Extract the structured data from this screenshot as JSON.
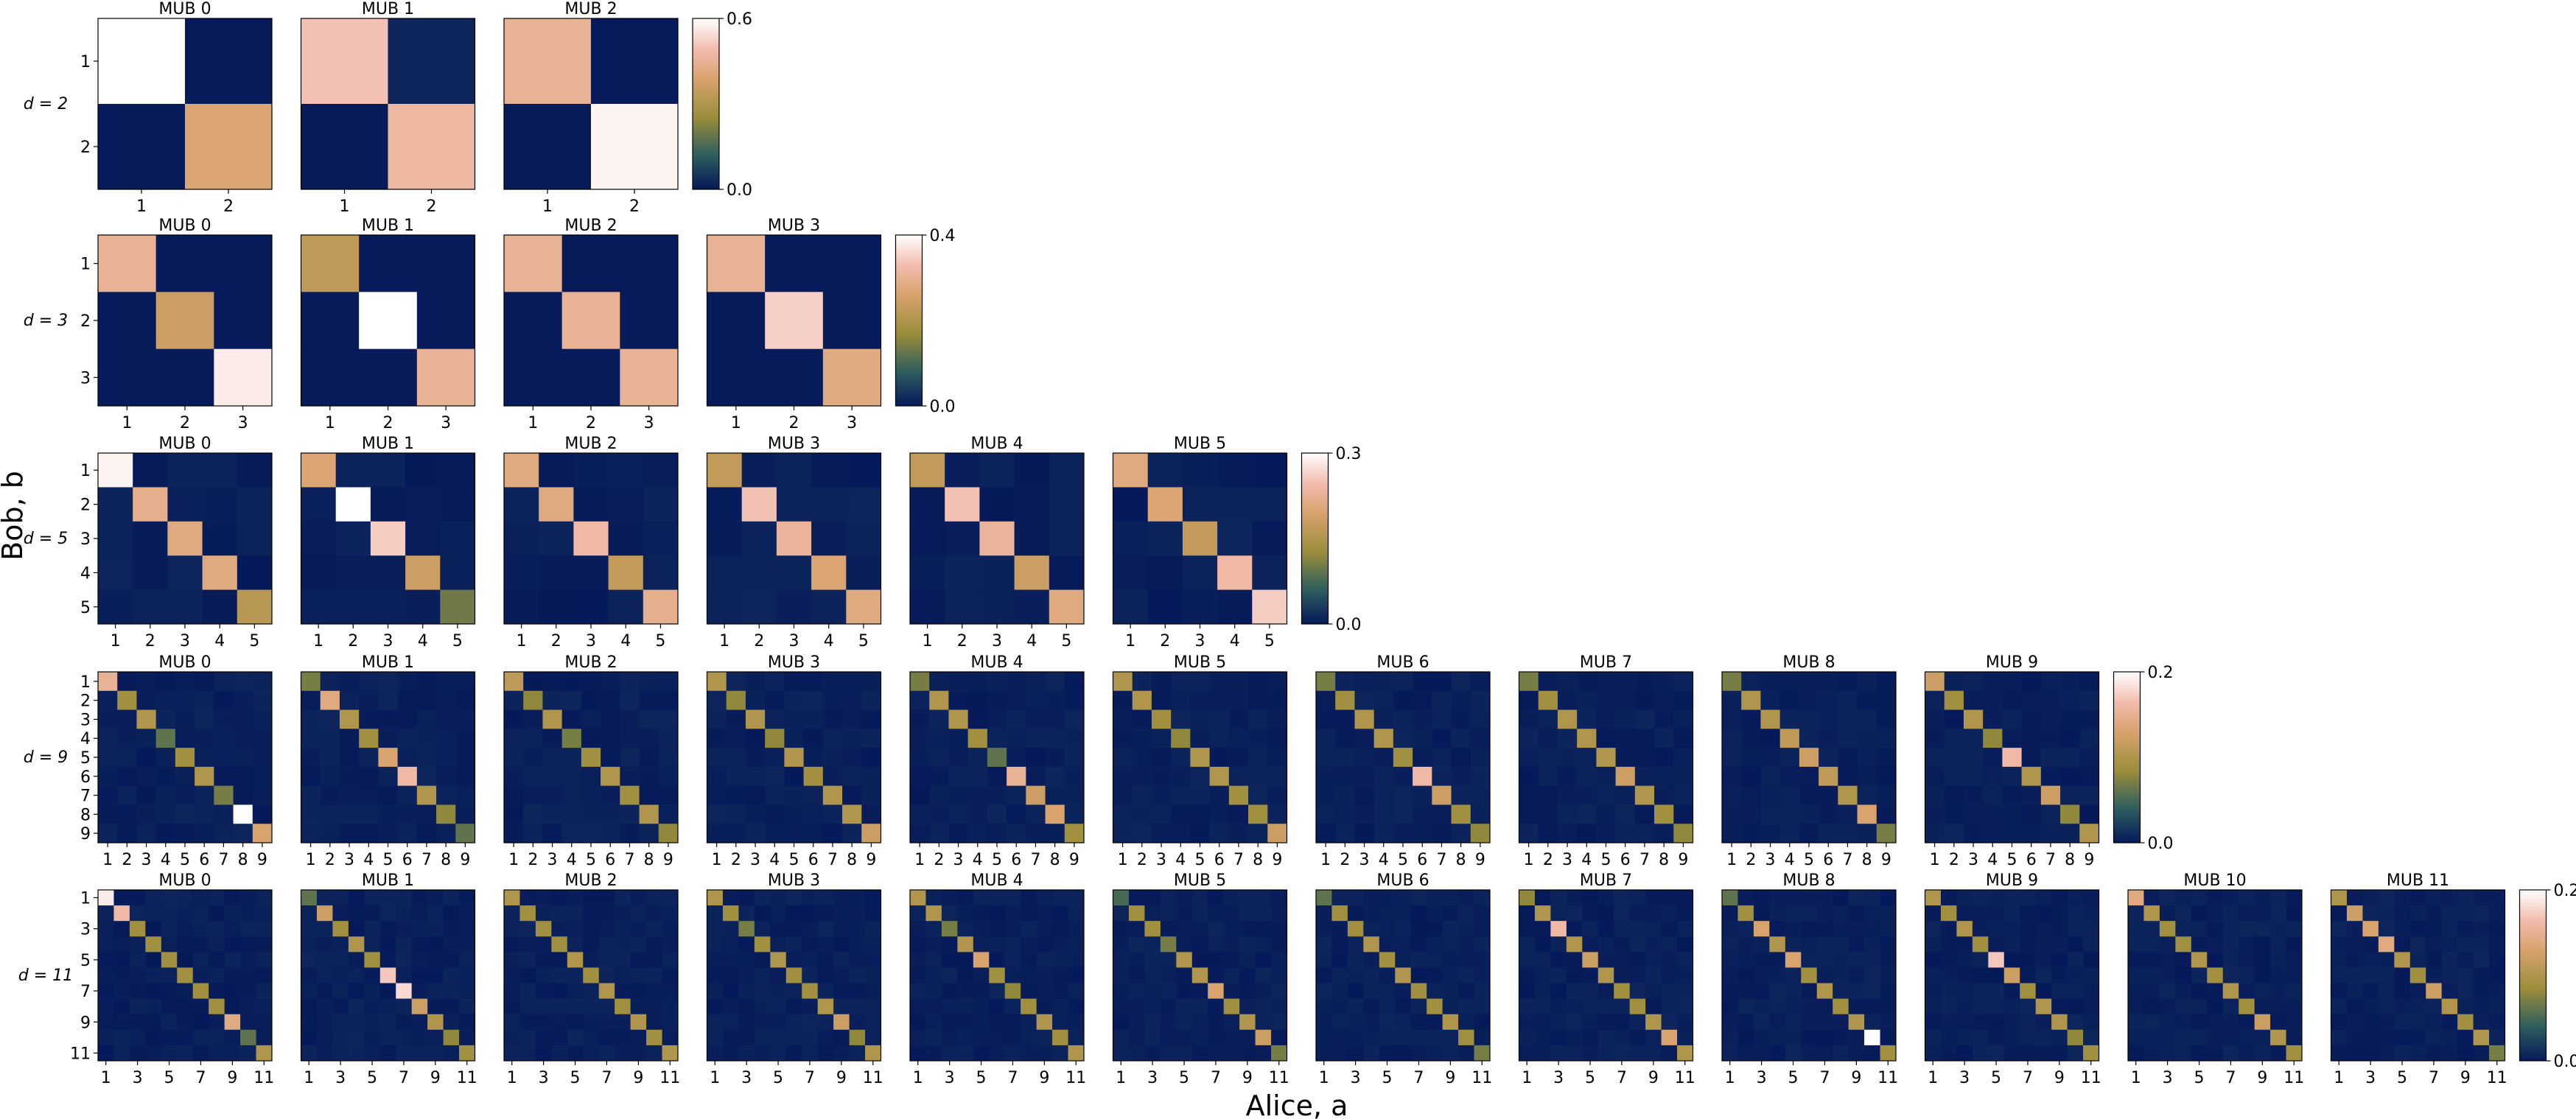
{
  "figure": {
    "xlabel": "Alice, $a$",
    "xlabel_display": "Alice, a",
    "ylabel": "Bob, b",
    "colormap": "gist_earth-like (dark navy → green → tan → pink → white)",
    "colormap_stops": [
      "#06195a",
      "#2d5e5e",
      "#9a8d3a",
      "#d9a36e",
      "#f2bcae",
      "#ffffff"
    ]
  },
  "chart_data": [
    {
      "type": "heatmap",
      "group_label": "d = 2",
      "d": 2,
      "panel_titles": [
        "MUB 0",
        "MUB 1",
        "MUB 2"
      ],
      "tick_labels": [
        "1",
        "2"
      ],
      "colorbar": {
        "min": 0.0,
        "max": 0.6,
        "tick_labels": [
          "0.0",
          "0.6"
        ]
      },
      "diagonal_values": [
        [
          0.6,
          0.4
        ],
        [
          0.5,
          0.47
        ],
        [
          0.45,
          0.58
        ]
      ],
      "off_diagonal_note": "near 0",
      "notable_off_diagonal": [
        {
          "panel": 1,
          "row": 0,
          "col": 1,
          "value": 0.02
        }
      ]
    },
    {
      "type": "heatmap",
      "group_label": "d = 3",
      "d": 3,
      "panel_titles": [
        "MUB 0",
        "MUB 1",
        "MUB 2",
        "MUB 3"
      ],
      "tick_labels": [
        "1",
        "2",
        "3"
      ],
      "colorbar": {
        "min": 0.0,
        "max": 0.4,
        "tick_labels": [
          "0.0",
          "0.4"
        ]
      },
      "diagonal_values": [
        [
          0.3,
          0.24,
          0.38
        ],
        [
          0.22,
          0.4,
          0.3
        ],
        [
          0.3,
          0.3,
          0.3
        ],
        [
          0.3,
          0.35,
          0.28
        ]
      ],
      "off_diagonal_note": "near 0"
    },
    {
      "type": "heatmap",
      "group_label": "d = 5",
      "d": 5,
      "panel_titles": [
        "MUB 0",
        "MUB 1",
        "MUB 2",
        "MUB 3",
        "MUB 4",
        "MUB 5"
      ],
      "tick_labels": [
        "1",
        "2",
        "3",
        "4",
        "5"
      ],
      "colorbar": {
        "min": 0.0,
        "max": 0.3,
        "tick_labels": [
          "0.0",
          "0.3"
        ]
      },
      "diagonal_values": [
        [
          0.29,
          0.22,
          0.21,
          0.21,
          0.16
        ],
        [
          0.2,
          0.3,
          0.26,
          0.18,
          0.1
        ],
        [
          0.21,
          0.21,
          0.24,
          0.17,
          0.22
        ],
        [
          0.17,
          0.25,
          0.23,
          0.2,
          0.21
        ],
        [
          0.17,
          0.25,
          0.23,
          0.18,
          0.21
        ],
        [
          0.21,
          0.2,
          0.17,
          0.24,
          0.26
        ]
      ],
      "off_diagonal_note": "near 0"
    },
    {
      "type": "heatmap",
      "group_label": "d = 9",
      "d": 9,
      "panel_titles": [
        "MUB 0",
        "MUB 1",
        "MUB 2",
        "MUB 3",
        "MUB 4",
        "MUB 5",
        "MUB 6",
        "MUB 7",
        "MUB 8",
        "MUB 9"
      ],
      "tick_labels": [
        "1",
        "2",
        "3",
        "4",
        "5",
        "6",
        "7",
        "8",
        "9"
      ],
      "colorbar": {
        "min": 0.0,
        "max": 0.2,
        "tick_labels": [
          "0.0",
          "0.2"
        ]
      },
      "diagonal_values": [
        [
          0.15,
          0.09,
          0.1,
          0.06,
          0.09,
          0.1,
          0.07,
          0.2,
          0.13
        ],
        [
          0.07,
          0.14,
          0.1,
          0.09,
          0.13,
          0.16,
          0.1,
          0.08,
          0.06
        ],
        [
          0.11,
          0.08,
          0.1,
          0.07,
          0.09,
          0.1,
          0.09,
          0.1,
          0.08
        ],
        [
          0.1,
          0.08,
          0.1,
          0.08,
          0.1,
          0.09,
          0.1,
          0.1,
          0.12
        ],
        [
          0.07,
          0.1,
          0.1,
          0.09,
          0.06,
          0.15,
          0.12,
          0.13,
          0.09
        ],
        [
          0.1,
          0.1,
          0.09,
          0.08,
          0.1,
          0.1,
          0.09,
          0.09,
          0.12
        ],
        [
          0.07,
          0.09,
          0.1,
          0.1,
          0.09,
          0.16,
          0.12,
          0.09,
          0.08
        ],
        [
          0.07,
          0.09,
          0.1,
          0.1,
          0.1,
          0.12,
          0.1,
          0.09,
          0.08
        ],
        [
          0.07,
          0.1,
          0.1,
          0.11,
          0.12,
          0.11,
          0.1,
          0.13,
          0.07
        ],
        [
          0.12,
          0.09,
          0.1,
          0.08,
          0.16,
          0.1,
          0.12,
          0.08,
          0.1
        ]
      ],
      "off_diagonal_note": "near 0"
    },
    {
      "type": "heatmap",
      "group_label": "d = 11",
      "d": 11,
      "panel_titles": [
        "MUB 0",
        "MUB 1",
        "MUB 2",
        "MUB 3",
        "MUB 4",
        "MUB 5",
        "MUB 6",
        "MUB 7",
        "MUB 8",
        "MUB 9",
        "MUB 10",
        "MUB 11"
      ],
      "tick_labels": [
        "1",
        "3",
        "5",
        "7",
        "9",
        "11"
      ],
      "colorbar": {
        "min": 0.0,
        "max": 0.2,
        "tick_labels": [
          "0.0",
          "0.2"
        ]
      },
      "diagonal_values": [
        [
          0.19,
          0.16,
          0.09,
          0.09,
          0.09,
          0.09,
          0.09,
          0.09,
          0.14,
          0.06,
          0.1
        ],
        [
          0.06,
          0.12,
          0.09,
          0.1,
          0.09,
          0.17,
          0.18,
          0.12,
          0.1,
          0.08,
          0.09
        ],
        [
          0.1,
          0.09,
          0.09,
          0.09,
          0.1,
          0.09,
          0.1,
          0.09,
          0.1,
          0.09,
          0.1
        ],
        [
          0.1,
          0.09,
          0.07,
          0.09,
          0.1,
          0.09,
          0.09,
          0.1,
          0.12,
          0.08,
          0.1
        ],
        [
          0.1,
          0.1,
          0.07,
          0.1,
          0.13,
          0.09,
          0.08,
          0.09,
          0.1,
          0.09,
          0.1
        ],
        [
          0.05,
          0.09,
          0.09,
          0.07,
          0.1,
          0.1,
          0.13,
          0.09,
          0.1,
          0.12,
          0.07
        ],
        [
          0.06,
          0.09,
          0.09,
          0.1,
          0.09,
          0.1,
          0.09,
          0.09,
          0.1,
          0.09,
          0.07
        ],
        [
          0.08,
          0.1,
          0.16,
          0.1,
          0.12,
          0.1,
          0.09,
          0.09,
          0.1,
          0.13,
          0.1
        ],
        [
          0.06,
          0.09,
          0.13,
          0.1,
          0.13,
          0.09,
          0.1,
          0.09,
          0.1,
          0.2,
          0.09
        ],
        [
          0.1,
          0.09,
          0.1,
          0.09,
          0.17,
          0.12,
          0.09,
          0.1,
          0.1,
          0.08,
          0.09
        ],
        [
          0.14,
          0.1,
          0.09,
          0.09,
          0.1,
          0.09,
          0.1,
          0.09,
          0.12,
          0.1,
          0.09
        ],
        [
          0.1,
          0.12,
          0.13,
          0.14,
          0.1,
          0.09,
          0.12,
          0.1,
          0.09,
          0.1,
          0.07
        ]
      ],
      "off_diagonal_note": "near 0"
    }
  ]
}
